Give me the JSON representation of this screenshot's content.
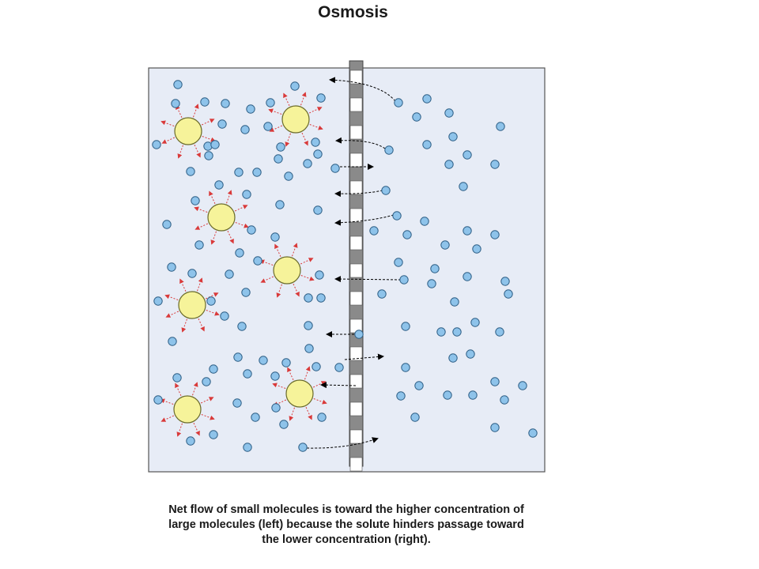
{
  "title": "Osmosis",
  "caption_lines": [
    "Net flow of small molecules is toward the higher concentration of",
    "large molecules (left) because the solute hinders passage toward",
    "the lower concentration (right)."
  ],
  "colors": {
    "container_fill": "#e7ecf6",
    "container_stroke": "#555555",
    "small_molecule_fill": "#8ec3ea",
    "small_molecule_stroke": "#2f5f86",
    "large_molecule_fill": "#f6f39a",
    "large_molecule_stroke": "#6a6a2a",
    "bond_arrow": "#d93a3a",
    "flow_arrow": "#000000",
    "membrane_dark": "#8a8a8a",
    "membrane_pore": "#ffffff"
  },
  "icons": {
    "small_molecule": "small-molecule-icon",
    "large_molecule": "large-molecule-icon",
    "membrane": "semipermeable-membrane-icon"
  },
  "counts": {
    "large_molecules": 7
  }
}
